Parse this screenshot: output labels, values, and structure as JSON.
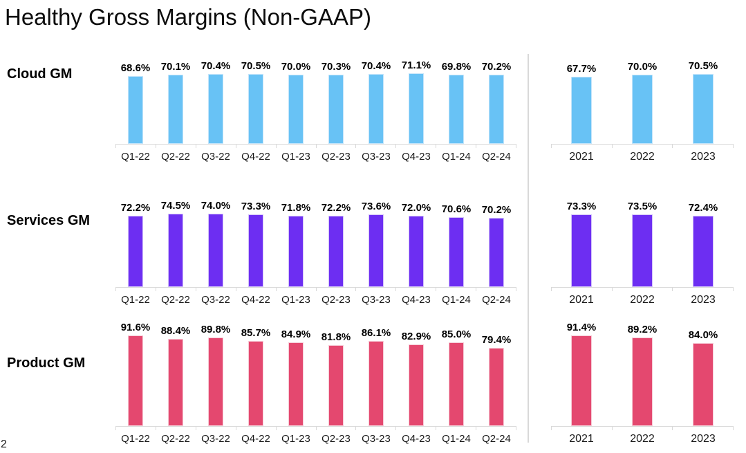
{
  "page": {
    "title": "Healthy Gross Margins (Non-GAAP)",
    "page_number": "2"
  },
  "chart_data": [
    {
      "type": "bar",
      "name": "Cloud GM",
      "color": "#68C2F5",
      "edge_color": "#C3E4FA",
      "unit": "%",
      "ylim": [
        0,
        100
      ],
      "quarterly": {
        "categories": [
          "Q1-22",
          "Q2-22",
          "Q3-22",
          "Q4-22",
          "Q1-23",
          "Q2-23",
          "Q3-23",
          "Q4-23",
          "Q1-24",
          "Q2-24"
        ],
        "values": [
          68.6,
          70.1,
          70.4,
          70.5,
          70.0,
          70.3,
          70.4,
          71.1,
          69.8,
          70.2
        ]
      },
      "annual": {
        "categories": [
          "2021",
          "2022",
          "2023"
        ],
        "values": [
          67.7,
          70.0,
          70.5
        ]
      }
    },
    {
      "type": "bar",
      "name": "Services GM",
      "color": "#6D2EF2",
      "edge_color": "#D2C2F9",
      "unit": "%",
      "ylim": [
        0,
        100
      ],
      "quarterly": {
        "categories": [
          "Q1-22",
          "Q2-22",
          "Q3-22",
          "Q4-22",
          "Q1-23",
          "Q2-23",
          "Q3-23",
          "Q4-23",
          "Q1-24",
          "Q2-24"
        ],
        "values": [
          72.2,
          74.5,
          74.0,
          73.3,
          71.8,
          72.2,
          73.6,
          72.0,
          70.6,
          70.2
        ]
      },
      "annual": {
        "categories": [
          "2021",
          "2022",
          "2023"
        ],
        "values": [
          73.3,
          73.5,
          72.4
        ]
      }
    },
    {
      "type": "bar",
      "name": "Product GM",
      "color": "#E4486F",
      "edge_color": "#F6CBD6",
      "unit": "%",
      "ylim": [
        0,
        100
      ],
      "quarterly": {
        "categories": [
          "Q1-22",
          "Q2-22",
          "Q3-22",
          "Q4-22",
          "Q1-23",
          "Q2-23",
          "Q3-23",
          "Q4-23",
          "Q1-24",
          "Q2-24"
        ],
        "values": [
          91.6,
          88.4,
          89.8,
          85.7,
          84.9,
          81.8,
          86.1,
          82.9,
          85.0,
          79.4
        ]
      },
      "annual": {
        "categories": [
          "2021",
          "2022",
          "2023"
        ],
        "values": [
          91.4,
          89.2,
          84.0
        ]
      }
    }
  ]
}
